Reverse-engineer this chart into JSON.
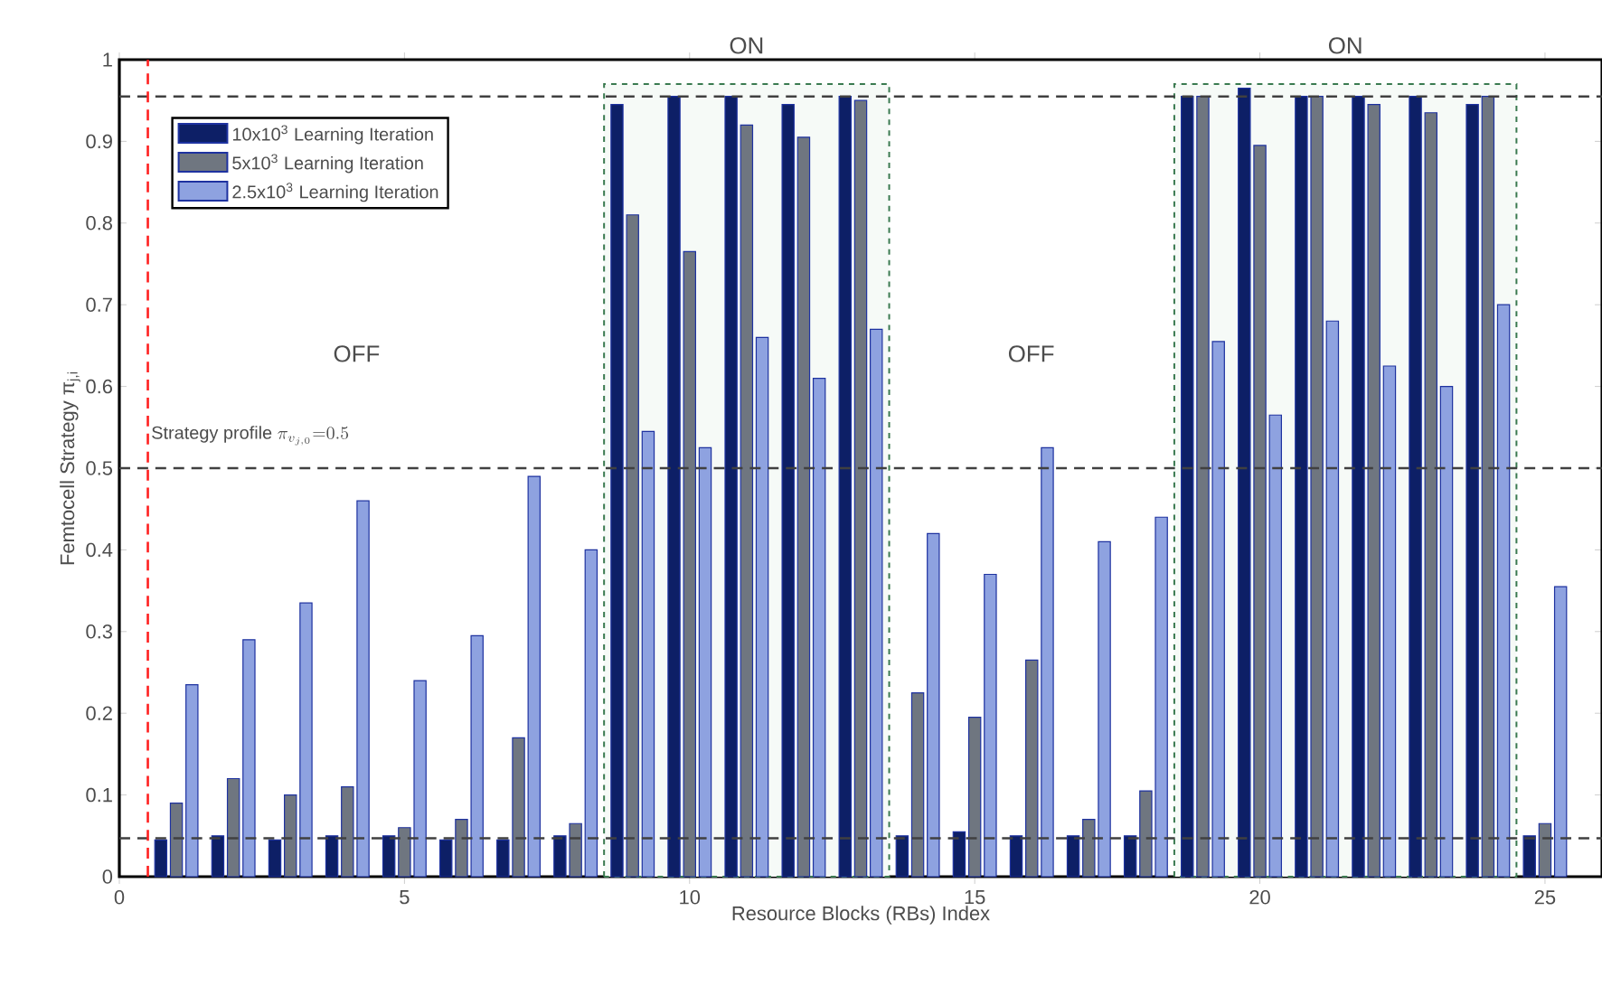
{
  "chart_data": {
    "type": "bar",
    "xlabel": "Resource Blocks (RBs) Index",
    "ylabel": "Femtocell Strategy π$_{j,i}$",
    "x": [
      1,
      2,
      3,
      4,
      5,
      6,
      7,
      8,
      9,
      10,
      11,
      12,
      13,
      14,
      15,
      16,
      17,
      18,
      19,
      20,
      21,
      22,
      23,
      24,
      25
    ],
    "series": [
      {
        "name": "10x10$^{3}$  Learning Iteration",
        "color": "#0d1f66",
        "values": [
          0.045,
          0.05,
          0.045,
          0.05,
          0.05,
          0.045,
          0.045,
          0.05,
          0.945,
          0.955,
          0.955,
          0.945,
          0.955,
          0.05,
          0.055,
          0.05,
          0.05,
          0.05,
          0.955,
          0.965,
          0.955,
          0.955,
          0.955,
          0.945,
          0.05
        ]
      },
      {
        "name": "5x10$^{3}$    Learning Iteration",
        "color": "#6f7680",
        "values": [
          0.09,
          0.12,
          0.1,
          0.11,
          0.06,
          0.07,
          0.17,
          0.065,
          0.81,
          0.765,
          0.92,
          0.905,
          0.95,
          0.225,
          0.195,
          0.265,
          0.07,
          0.105,
          0.955,
          0.895,
          0.955,
          0.945,
          0.935,
          0.955,
          0.065
        ]
      },
      {
        "name": "2.5x10$^{3}$ Learning Iteration",
        "color": "#8ea2e0",
        "values": [
          0.235,
          0.29,
          0.335,
          0.46,
          0.24,
          0.295,
          0.49,
          0.4,
          0.545,
          0.525,
          0.66,
          0.61,
          0.67,
          0.42,
          0.37,
          0.525,
          0.41,
          0.44,
          0.655,
          0.565,
          0.68,
          0.625,
          0.6,
          0.7,
          0.355
        ]
      }
    ],
    "xlim": [
      0,
      26
    ],
    "xticks": [
      0,
      5,
      10,
      15,
      20,
      25
    ],
    "ylim": [
      0,
      1
    ],
    "yticks": [
      0,
      0.1,
      0.2,
      0.3,
      0.4,
      0.5,
      0.6,
      0.7,
      0.8,
      0.9,
      1
    ],
    "ref_lines": [
      {
        "axis": "y",
        "value": 0.955,
        "color": "#404040",
        "line_style": "dashed"
      },
      {
        "axis": "y",
        "value": 0.5,
        "color": "#404040",
        "line_style": "dashed"
      },
      {
        "axis": "y",
        "value": 0.047,
        "color": "#404040",
        "line_style": "dashed"
      },
      {
        "axis": "x",
        "value": 0.5,
        "color": "#ff2020",
        "line_style": "dashed"
      }
    ],
    "bands": [
      {
        "axis": "x",
        "from": 8.5,
        "to": 13.5,
        "color": "#3a7a50",
        "label": "ON"
      },
      {
        "axis": "x",
        "from": 18.5,
        "to": 24.5,
        "color": "#3a7a50",
        "label": "ON"
      }
    ],
    "annotations": [
      "OFF",
      "OFF",
      "\\mathrm{Strategy\\ profile}\\ \\pi_{v_{j,0}}{=}0.5"
    ],
    "legend": "top left",
    "grid": false
  }
}
